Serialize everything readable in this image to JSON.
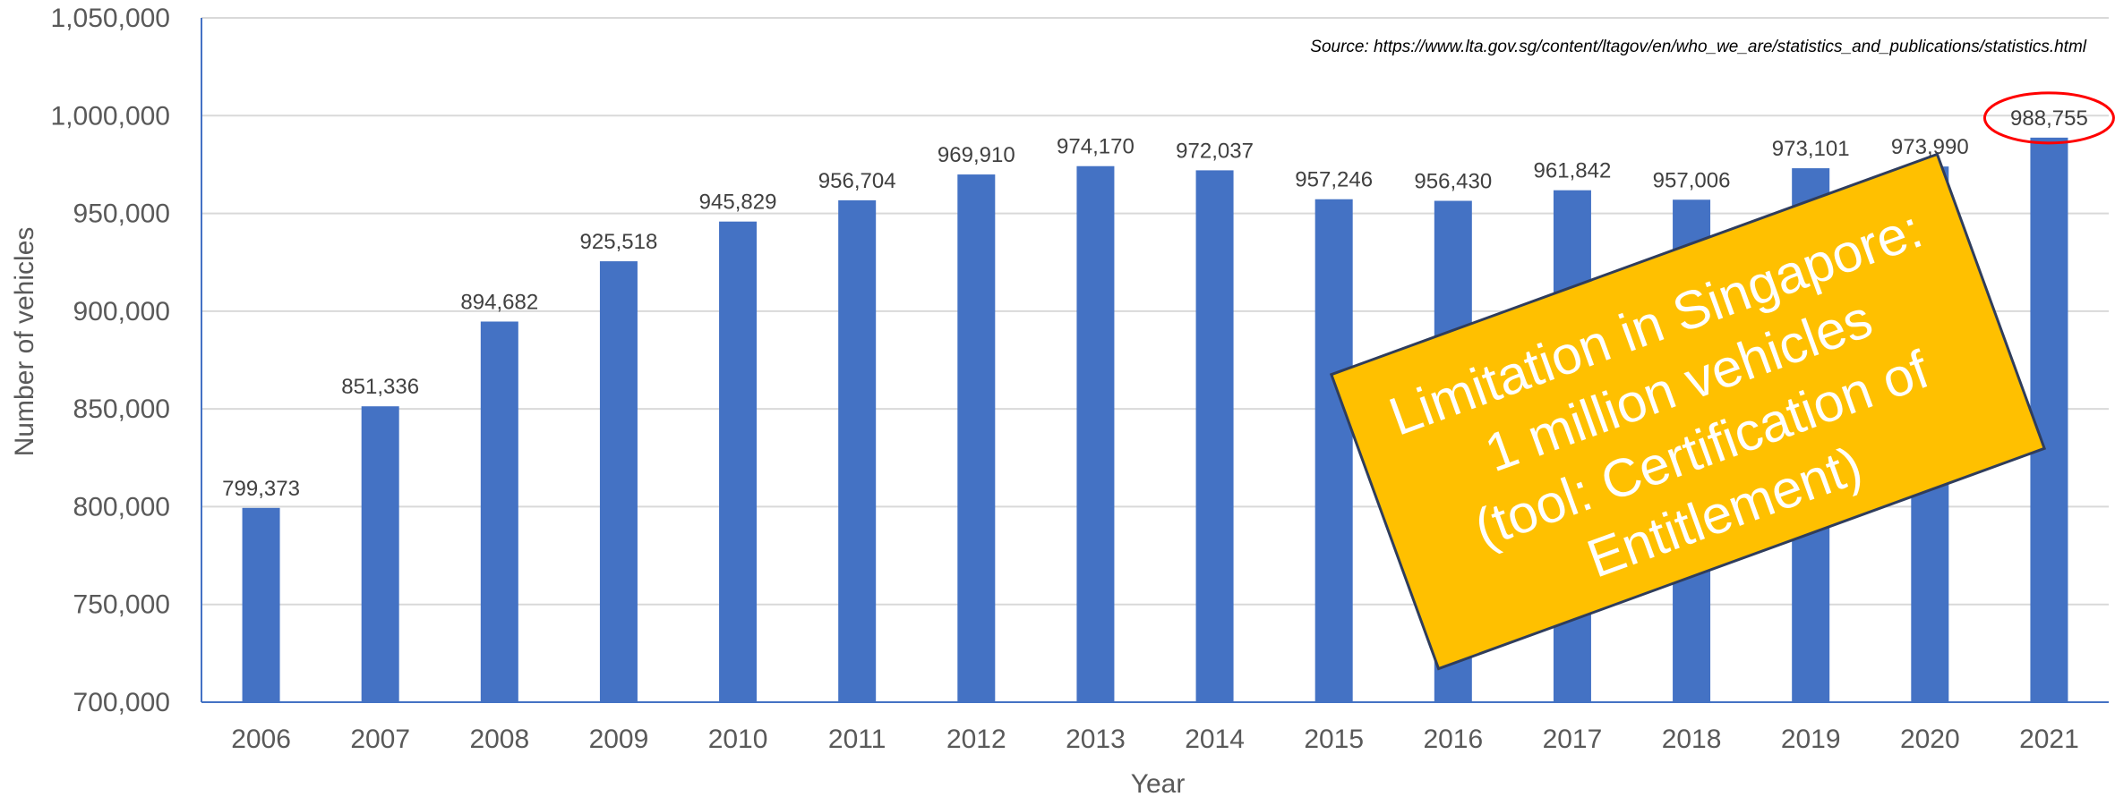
{
  "chart_data": {
    "type": "bar",
    "categories": [
      "2006",
      "2007",
      "2008",
      "2009",
      "2010",
      "2011",
      "2012",
      "2013",
      "2014",
      "2015",
      "2016",
      "2017",
      "2018",
      "2019",
      "2020",
      "2021"
    ],
    "values": [
      799373,
      851336,
      894682,
      925518,
      945829,
      956704,
      969910,
      974170,
      972037,
      957246,
      956430,
      961842,
      957006,
      973101,
      973990,
      988755
    ],
    "data_labels": [
      "799,373",
      "851,336",
      "894,682",
      "925,518",
      "945,829",
      "956,704",
      "969,910",
      "974,170",
      "972,037",
      "957,246",
      "956,430",
      "961,842",
      "957,006",
      "973,101",
      "973,990",
      "988,755"
    ],
    "title": "",
    "xlabel": "Year",
    "ylabel": "Number of vehicles",
    "ylim": [
      700000,
      1050000
    ],
    "yticks": [
      700000,
      750000,
      800000,
      850000,
      900000,
      950000,
      1000000,
      1050000
    ],
    "ytick_labels": [
      "700,000",
      "750,000",
      "800,000",
      "850,000",
      "900,000",
      "950,000",
      "1,000,000",
      "1,050,000"
    ],
    "grid": true,
    "bar_color": "#4472C4",
    "highlighted_category": "2021",
    "highlight_color": "#FF0000"
  },
  "source_note": "Source: https://www.lta.gov.sg/content/ltagov/en/who_we_are/statistics_and_publications/statistics.html",
  "callout": {
    "lines": [
      "Limitation in Singapore:",
      "1 million vehicles",
      "(tool: Certification of",
      "Entitlement)"
    ],
    "fill": "#FFC000",
    "text_color": "#FFFFFF"
  }
}
